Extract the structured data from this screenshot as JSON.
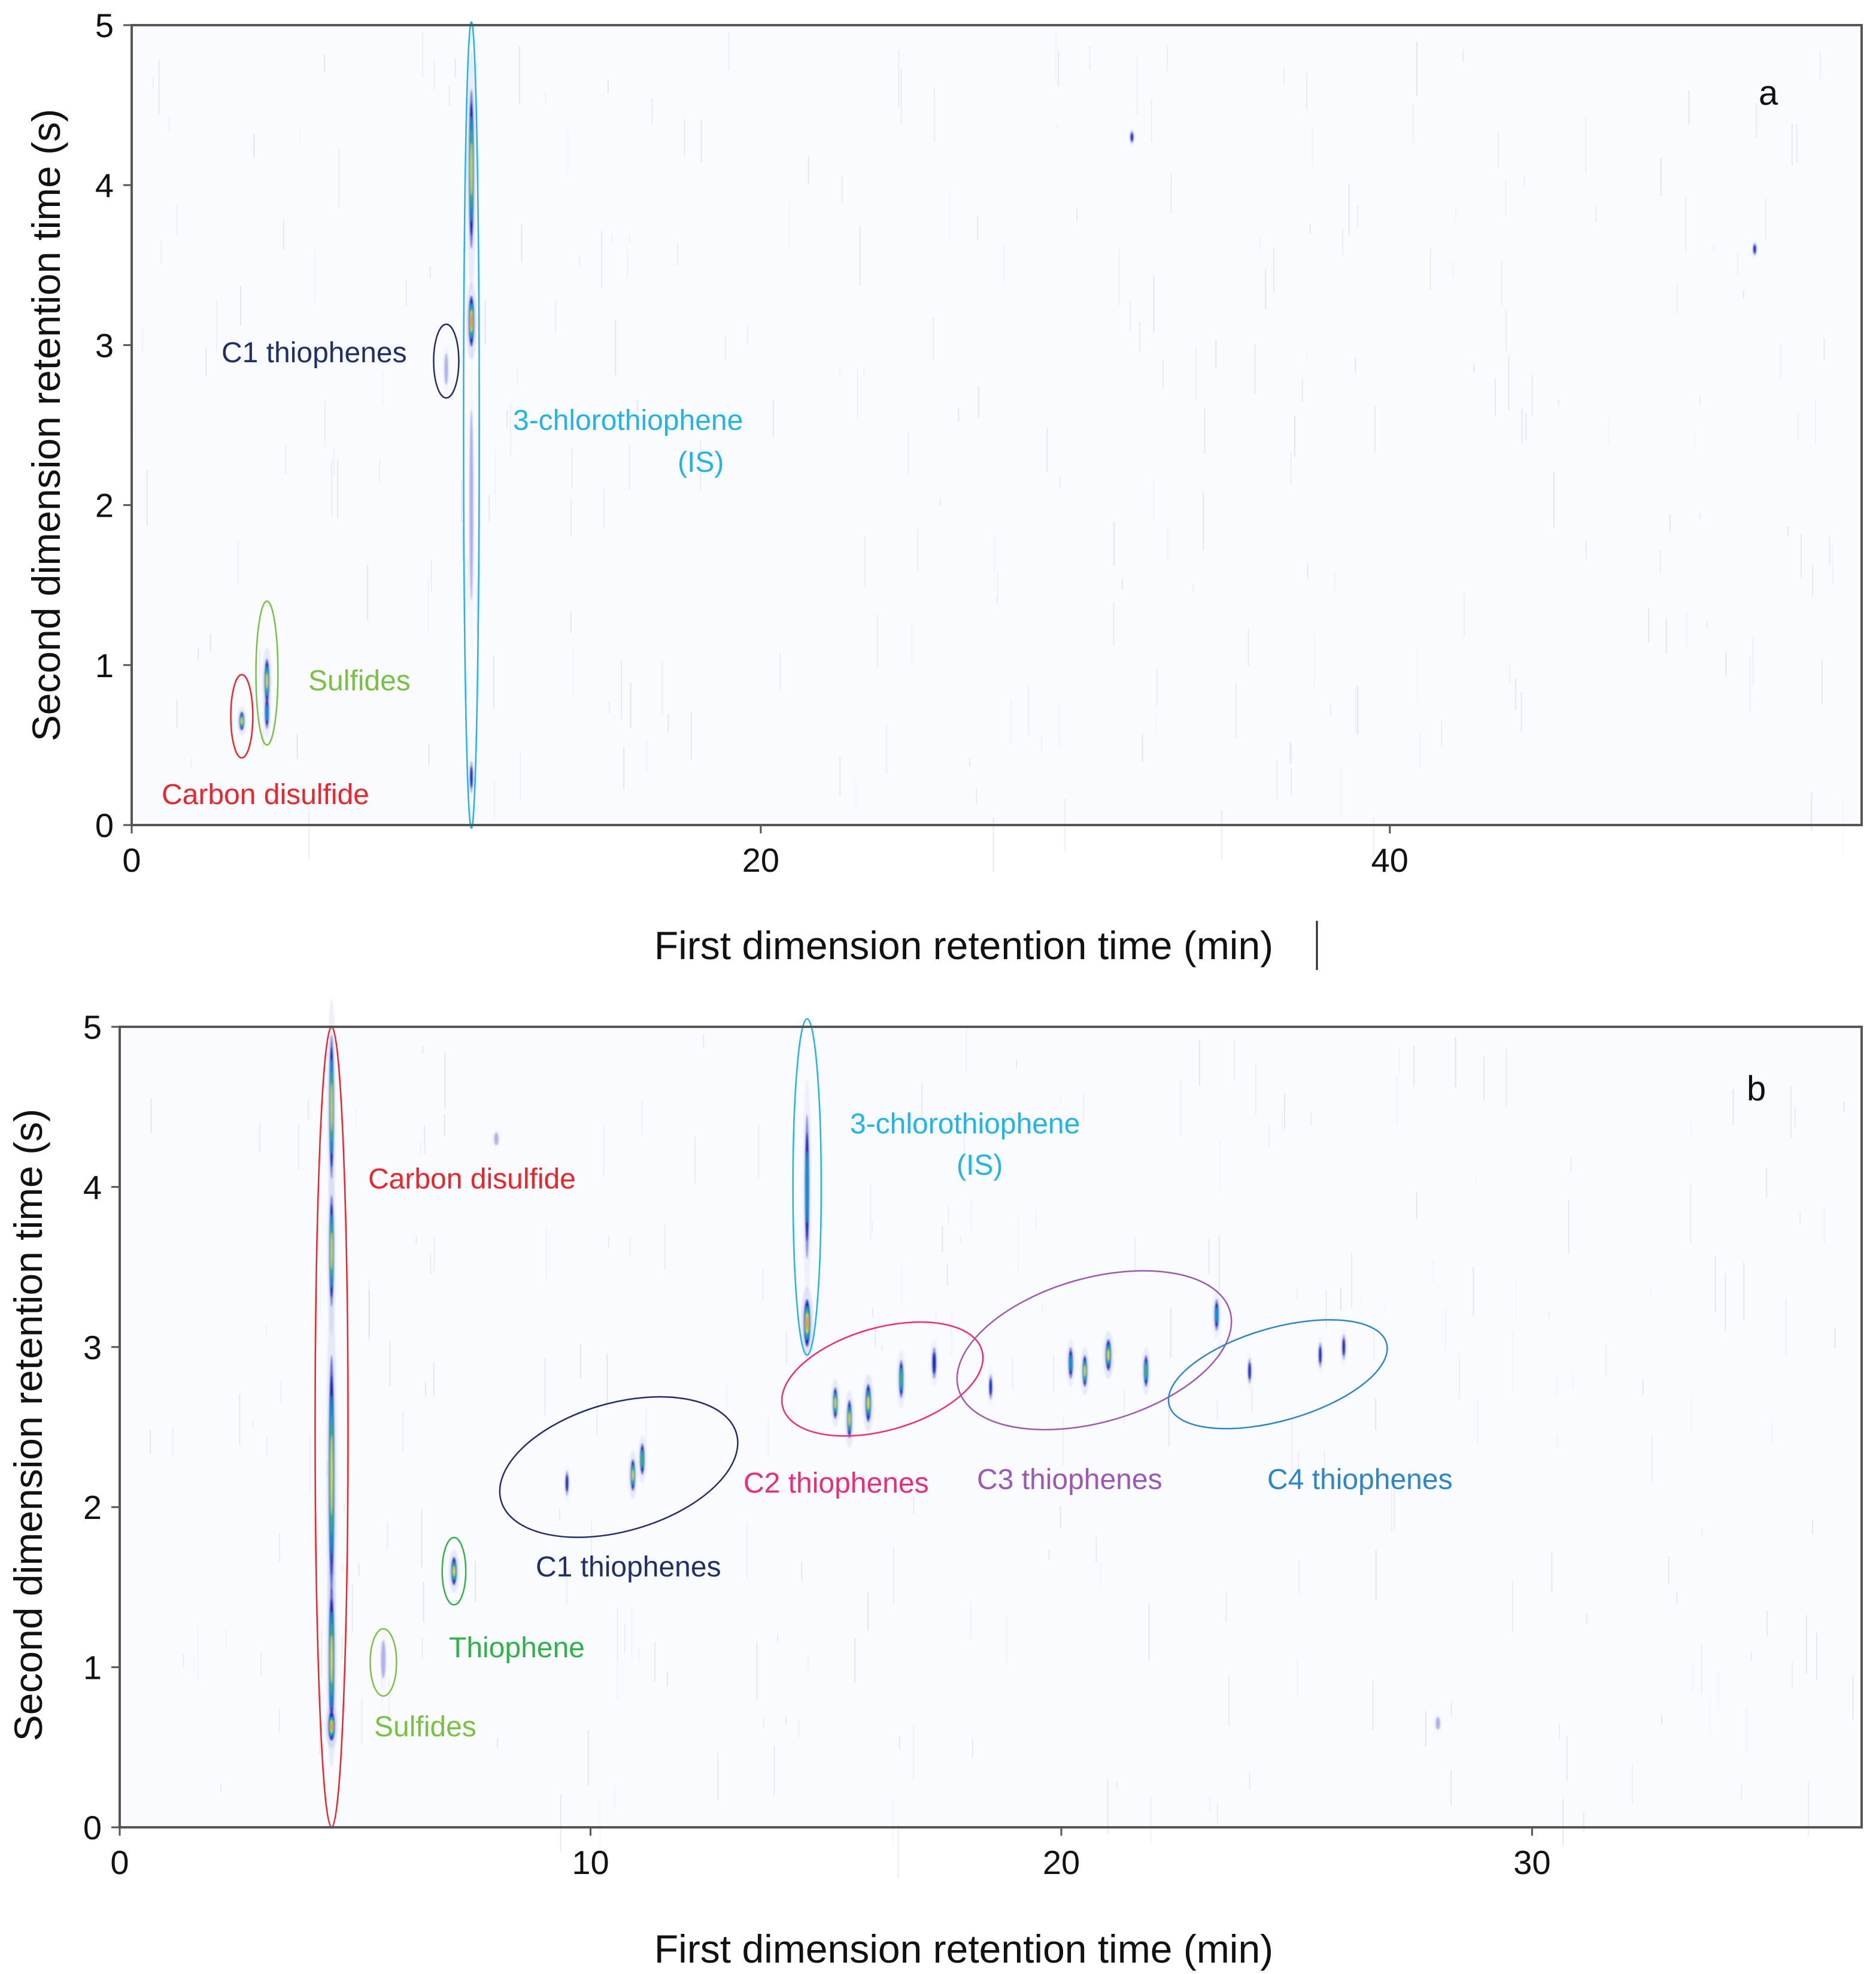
{
  "chart_data": [
    {
      "type": "heatmap",
      "panel": "a",
      "title": "",
      "xlabel": "First dimension retention time (min)",
      "ylabel": "Second dimension retention time (s)",
      "xlim": [
        0,
        55
      ],
      "ylim": [
        0,
        5
      ],
      "xticks": [
        0,
        20,
        40
      ],
      "yticks": [
        0,
        1,
        2,
        3,
        4,
        5
      ],
      "peaks": [
        {
          "x": 3.5,
          "y": 0.65,
          "sigma_x": 0.08,
          "sigma_y": 0.06,
          "intensity": 0.75
        },
        {
          "x": 4.3,
          "y": 0.9,
          "sigma_x": 0.08,
          "sigma_y": 0.14,
          "intensity": 0.85
        },
        {
          "x": 4.3,
          "y": 0.7,
          "sigma_x": 0.07,
          "sigma_y": 0.1,
          "intensity": 0.5
        },
        {
          "x": 10.8,
          "y": 4.1,
          "sigma_x": 0.08,
          "sigma_y": 0.5,
          "intensity": 0.75
        },
        {
          "x": 10.8,
          "y": 3.15,
          "sigma_x": 0.09,
          "sigma_y": 0.16,
          "intensity": 1.0
        },
        {
          "x": 10.8,
          "y": 2.0,
          "sigma_x": 0.06,
          "sigma_y": 0.6,
          "intensity": 0.22
        },
        {
          "x": 10.8,
          "y": 0.3,
          "sigma_x": 0.05,
          "sigma_y": 0.1,
          "intensity": 0.3
        },
        {
          "x": 10.0,
          "y": 2.85,
          "sigma_x": 0.06,
          "sigma_y": 0.1,
          "intensity": 0.2
        },
        {
          "x": 31.8,
          "y": 4.3,
          "sigma_x": 0.06,
          "sigma_y": 0.04,
          "intensity": 0.25
        },
        {
          "x": 51.6,
          "y": 3.6,
          "sigma_x": 0.06,
          "sigma_y": 0.04,
          "intensity": 0.25
        }
      ],
      "annotations": [
        {
          "text": "C1 thiophenes",
          "ellipse": {
            "cx": 10.0,
            "cy": 2.9,
            "rx": 0.4,
            "ry": 0.23
          },
          "color": "#1f2f6e"
        },
        {
          "text": "3-chlorothiophene",
          "text2": "(IS)",
          "ellipse": {
            "cx": 10.8,
            "cy": 2.5,
            "rx": 0.25,
            "ry": 2.52
          },
          "color": "#22b3e8"
        },
        {
          "text": "Sulfides",
          "ellipse": {
            "cx": 4.3,
            "cy": 0.95,
            "rx": 0.35,
            "ry": 0.45
          },
          "color": "#7ac143"
        },
        {
          "text": "Carbon disulfide",
          "ellipse": {
            "cx": 3.5,
            "cy": 0.68,
            "rx": 0.35,
            "ry": 0.26
          },
          "color": "#e8262b"
        }
      ],
      "panel_label": "a"
    },
    {
      "type": "heatmap",
      "panel": "b",
      "title": "",
      "xlabel": "First dimension retention time (min)",
      "ylabel": "Second dimension retention time (s)",
      "xlim": [
        0,
        37
      ],
      "ylim": [
        0,
        5
      ],
      "xticks": [
        0,
        10,
        20,
        30
      ],
      "yticks": [
        0,
        1,
        2,
        3,
        4,
        5
      ],
      "peaks": [
        {
          "x": 4.5,
          "y": 4.5,
          "sigma_x": 0.05,
          "sigma_y": 0.45,
          "intensity": 0.75
        },
        {
          "x": 4.5,
          "y": 3.6,
          "sigma_x": 0.05,
          "sigma_y": 0.35,
          "intensity": 0.75
        },
        {
          "x": 4.5,
          "y": 2.2,
          "sigma_x": 0.06,
          "sigma_y": 0.75,
          "intensity": 0.85
        },
        {
          "x": 4.5,
          "y": 1.05,
          "sigma_x": 0.06,
          "sigma_y": 0.45,
          "intensity": 0.8
        },
        {
          "x": 4.5,
          "y": 0.63,
          "sigma_x": 0.07,
          "sigma_y": 0.09,
          "intensity": 1.0
        },
        {
          "x": 5.6,
          "y": 1.05,
          "sigma_x": 0.05,
          "sigma_y": 0.12,
          "intensity": 0.2
        },
        {
          "x": 7.1,
          "y": 1.6,
          "sigma_x": 0.06,
          "sigma_y": 0.09,
          "intensity": 0.85
        },
        {
          "x": 9.5,
          "y": 2.15,
          "sigma_x": 0.04,
          "sigma_y": 0.08,
          "intensity": 0.25
        },
        {
          "x": 10.9,
          "y": 2.2,
          "sigma_x": 0.05,
          "sigma_y": 0.1,
          "intensity": 0.8
        },
        {
          "x": 11.1,
          "y": 2.3,
          "sigma_x": 0.05,
          "sigma_y": 0.1,
          "intensity": 0.7
        },
        {
          "x": 14.6,
          "y": 4.0,
          "sigma_x": 0.05,
          "sigma_y": 0.45,
          "intensity": 0.5
        },
        {
          "x": 14.6,
          "y": 3.15,
          "sigma_x": 0.07,
          "sigma_y": 0.15,
          "intensity": 1.0
        },
        {
          "x": 15.2,
          "y": 2.65,
          "sigma_x": 0.05,
          "sigma_y": 0.1,
          "intensity": 0.75
        },
        {
          "x": 15.5,
          "y": 2.55,
          "sigma_x": 0.05,
          "sigma_y": 0.12,
          "intensity": 0.8
        },
        {
          "x": 15.9,
          "y": 2.65,
          "sigma_x": 0.06,
          "sigma_y": 0.12,
          "intensity": 0.85
        },
        {
          "x": 16.6,
          "y": 2.8,
          "sigma_x": 0.05,
          "sigma_y": 0.12,
          "intensity": 0.6
        },
        {
          "x": 17.3,
          "y": 2.9,
          "sigma_x": 0.05,
          "sigma_y": 0.1,
          "intensity": 0.4
        },
        {
          "x": 18.5,
          "y": 2.75,
          "sigma_x": 0.04,
          "sigma_y": 0.08,
          "intensity": 0.3
        },
        {
          "x": 20.2,
          "y": 2.9,
          "sigma_x": 0.05,
          "sigma_y": 0.1,
          "intensity": 0.55
        },
        {
          "x": 20.5,
          "y": 2.85,
          "sigma_x": 0.05,
          "sigma_y": 0.1,
          "intensity": 0.8
        },
        {
          "x": 21.0,
          "y": 2.95,
          "sigma_x": 0.06,
          "sigma_y": 0.1,
          "intensity": 0.85
        },
        {
          "x": 21.8,
          "y": 2.85,
          "sigma_x": 0.05,
          "sigma_y": 0.1,
          "intensity": 0.7
        },
        {
          "x": 23.3,
          "y": 3.2,
          "sigma_x": 0.05,
          "sigma_y": 0.1,
          "intensity": 0.5
        },
        {
          "x": 24.0,
          "y": 2.85,
          "sigma_x": 0.04,
          "sigma_y": 0.08,
          "intensity": 0.25
        },
        {
          "x": 25.5,
          "y": 2.95,
          "sigma_x": 0.04,
          "sigma_y": 0.08,
          "intensity": 0.3
        },
        {
          "x": 26.0,
          "y": 3.0,
          "sigma_x": 0.04,
          "sigma_y": 0.08,
          "intensity": 0.3
        },
        {
          "x": 8.0,
          "y": 4.3,
          "sigma_x": 0.05,
          "sigma_y": 0.04,
          "intensity": 0.2
        },
        {
          "x": 28.0,
          "y": 0.65,
          "sigma_x": 0.05,
          "sigma_y": 0.04,
          "intensity": 0.2
        }
      ],
      "annotations": [
        {
          "text": "Carbon disulfide",
          "ellipse": {
            "cx": 4.5,
            "cy": 2.5,
            "rx": 0.35,
            "ry": 2.5
          },
          "color": "#e8262b"
        },
        {
          "text": "3-chlorothiophene",
          "text2": "(IS)",
          "ellipse": {
            "cx": 14.6,
            "cy": 4.0,
            "rx": 0.3,
            "ry": 1.05
          },
          "color": "#22b3e8"
        },
        {
          "text": "C2 thiophenes",
          "ellipse": {
            "cx": 16.2,
            "cy": 2.8,
            "rx": 2.2,
            "ry": 0.32
          },
          "color": "#ec2b7a"
        },
        {
          "text": "C3 thiophenes",
          "ellipse": {
            "cx": 20.7,
            "cy": 2.98,
            "rx": 3.0,
            "ry": 0.45
          },
          "color": "#9b59b6"
        },
        {
          "text": "C4 thiophenes",
          "ellipse": {
            "cx": 24.6,
            "cy": 2.83,
            "rx": 2.4,
            "ry": 0.29
          },
          "color": "#2e86c9"
        },
        {
          "text": "C1 thiophenes",
          "ellipse": {
            "cx": 10.6,
            "cy": 2.25,
            "rx": 2.6,
            "ry": 0.4
          },
          "color": "#1f2f6e"
        },
        {
          "text": "Thiophene",
          "ellipse": {
            "cx": 7.1,
            "cy": 1.6,
            "rx": 0.25,
            "ry": 0.21
          },
          "color": "#2fb24a"
        },
        {
          "text": "Sulfides",
          "ellipse": {
            "cx": 5.6,
            "cy": 1.03,
            "rx": 0.28,
            "ry": 0.21
          },
          "color": "#7ac143"
        }
      ],
      "panel_label": "b"
    }
  ],
  "colors": {
    "background": "#fafbff",
    "axis": "#555555",
    "noise": "#c8cde8",
    "peak_colormap": [
      "#0a1fb4",
      "#0a1fb4",
      "#00a8d8",
      "#3bbf3b",
      "#e8e800",
      "#ff7a00",
      "#c80000"
    ]
  }
}
